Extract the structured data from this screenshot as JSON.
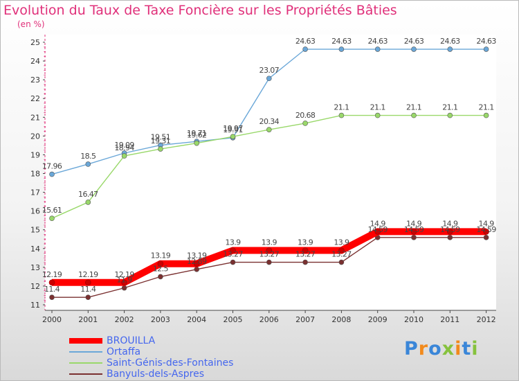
{
  "title": "Evolution du Taux de Taxe Foncière sur les Propriétés Bâties",
  "unit_label": "(en %)",
  "logo": {
    "text": "Proxiti",
    "letter_colors": [
      "#3a86d8",
      "#f28a1c",
      "#3a86d8",
      "#86c23d",
      "#f28a1c",
      "#3a86d8",
      "#86c23d"
    ]
  },
  "chart_data": {
    "type": "line",
    "x": [
      2000,
      2001,
      2002,
      2003,
      2004,
      2005,
      2006,
      2007,
      2008,
      2009,
      2010,
      2011,
      2012
    ],
    "ylim": [
      11,
      25
    ],
    "yticks": [
      11,
      12,
      13,
      14,
      15,
      16,
      17,
      18,
      19,
      20,
      21,
      22,
      23,
      24,
      25
    ],
    "grid": false,
    "legend_position": "bottom-left",
    "series": [
      {
        "name": "BROUILLA",
        "color": "#ff0000",
        "values": [
          12.19,
          12.19,
          12.19,
          13.19,
          13.19,
          13.9,
          13.9,
          13.9,
          13.9,
          14.9,
          14.9,
          14.9,
          14.9
        ],
        "labels": [
          "12.19",
          "12.19",
          "12.19",
          "13.19",
          "13.19",
          "13.9",
          "13.9",
          "13.9",
          "13.9",
          "14.9",
          "14.9",
          "14.9",
          "14.9"
        ]
      },
      {
        "name": "Ortaffa",
        "color": "#6aa7d8",
        "values": [
          17.96,
          18.5,
          19.09,
          19.51,
          19.71,
          19.91,
          23.07,
          24.63,
          24.63,
          24.63,
          24.63,
          24.63,
          24.63
        ],
        "labels": [
          "17.96",
          "18.5",
          "19.09",
          "19.51",
          "19.71",
          "19.91",
          "23.07",
          "24.63",
          "24.63",
          "24.63",
          "24.63",
          "24.63",
          "24.63"
        ]
      },
      {
        "name": "Saint-Génis-des-Fontaines",
        "color": "#99d86a",
        "values": [
          15.61,
          16.47,
          18.94,
          19.31,
          19.62,
          19.97,
          20.34,
          20.68,
          21.1,
          21.1,
          21.1,
          21.1,
          21.1
        ],
        "labels": [
          "15.61",
          "16.47",
          "18.94",
          "19.31",
          "19.62",
          "19.97",
          "20.34",
          "20.68",
          "21.1",
          "21.1",
          "21.1",
          "21.1",
          "21.1"
        ]
      },
      {
        "name": "Banyuls-dels-Aspres",
        "color": "#7a3030",
        "values": [
          11.4,
          11.4,
          11.9,
          12.5,
          12.89,
          13.27,
          13.27,
          13.27,
          13.27,
          14.59,
          14.59,
          14.59,
          14.59
        ],
        "labels": [
          "11.4",
          "11.4",
          "11.9",
          "12.5",
          "12.89",
          "13.27",
          "13.27",
          "13.27",
          "13.27",
          "14.59",
          "14.59",
          "14.59",
          "14.59"
        ]
      }
    ]
  }
}
